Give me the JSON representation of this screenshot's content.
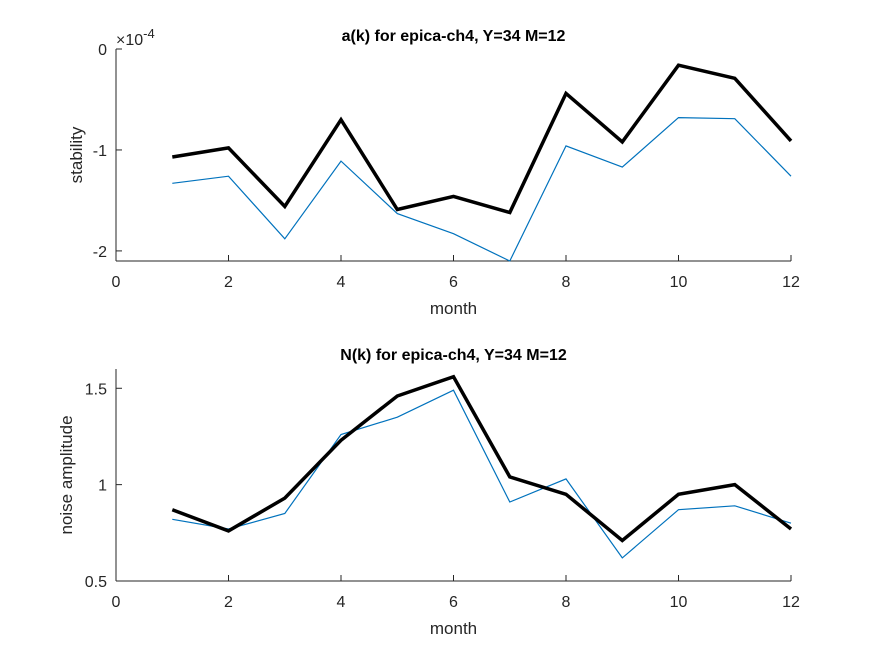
{
  "chart_data": [
    {
      "type": "line",
      "title": "a(k) for epica-ch4, Y=34 M=12",
      "xlabel": "month",
      "ylabel": "stability",
      "y_exponent_label": "×10",
      "y_exponent_value": "-4",
      "xlim": [
        0,
        12
      ],
      "ylim": [
        -2.1,
        0
      ],
      "xticks": [
        "0",
        "2",
        "4",
        "6",
        "8",
        "10",
        "12"
      ],
      "yticks": [
        "-2",
        "-1",
        "0"
      ],
      "grid": false,
      "x": [
        1,
        2,
        3,
        4,
        5,
        6,
        7,
        8,
        9,
        10,
        11,
        12
      ],
      "series": [
        {
          "color": "#000000",
          "style": "thick",
          "values": [
            -1.07,
            -0.98,
            -1.56,
            -0.7,
            -1.59,
            -1.46,
            -1.62,
            -0.44,
            -0.92,
            -0.16,
            -0.29,
            -0.91
          ]
        },
        {
          "color": "#0072BD",
          "style": "thin",
          "values": [
            -1.33,
            -1.26,
            -1.88,
            -1.11,
            -1.63,
            -1.83,
            -2.1,
            -0.96,
            -1.17,
            -0.68,
            -0.69,
            -1.26
          ]
        }
      ]
    },
    {
      "type": "line",
      "title": "N(k) for epica-ch4, Y=34 M=12",
      "xlabel": "month",
      "ylabel": "noise amplitude",
      "xlim": [
        0,
        12
      ],
      "ylim": [
        0.5,
        1.6
      ],
      "xticks": [
        "0",
        "2",
        "4",
        "6",
        "8",
        "10",
        "12"
      ],
      "yticks": [
        "0.5",
        "1",
        "1.5"
      ],
      "grid": false,
      "x": [
        1,
        2,
        3,
        4,
        5,
        6,
        7,
        8,
        9,
        10,
        11,
        12
      ],
      "series": [
        {
          "color": "#000000",
          "style": "thick",
          "values": [
            0.87,
            0.76,
            0.93,
            1.23,
            1.46,
            1.56,
            1.04,
            0.95,
            0.71,
            0.95,
            1.0,
            0.77
          ]
        },
        {
          "color": "#0072BD",
          "style": "thin",
          "values": [
            0.82,
            0.77,
            0.85,
            1.26,
            1.35,
            1.49,
            0.91,
            1.03,
            0.62,
            0.87,
            0.89,
            0.8
          ]
        }
      ]
    }
  ]
}
